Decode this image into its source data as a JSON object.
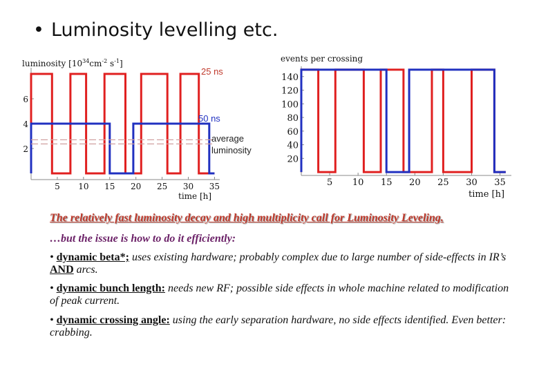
{
  "slide": {
    "bullet": "•",
    "title": "Luminosity levelling etc."
  },
  "chart_data": [
    {
      "type": "line",
      "ylabel": "luminosity [10^34 cm^-2 s^-1]",
      "ylabel_parts": {
        "main": "luminosity [10",
        "exp1": "34",
        "unit": "cm",
        "exp2": "-2",
        "unit2": " s",
        "exp3": "-1",
        "close": "]"
      },
      "xlabel": "time [h]",
      "xticks": [
        5,
        10,
        15,
        20,
        25,
        30,
        35
      ],
      "yticks": [
        2,
        4,
        6
      ],
      "xlim": [
        0,
        36
      ],
      "ylim": [
        -0.5,
        8.5
      ],
      "series": [
        {
          "name": "25 ns",
          "color": "#e02020",
          "x": [
            0,
            0,
            4,
            4,
            7.5,
            7.5,
            10.5,
            10.5,
            14,
            14,
            18,
            18,
            21,
            21,
            26,
            26,
            28.5,
            28.5,
            32,
            32,
            35
          ],
          "y": [
            0,
            8,
            8,
            0,
            0,
            8,
            8,
            0,
            0,
            8,
            8,
            0,
            0,
            8,
            8,
            0,
            0,
            8,
            8,
            0,
            0
          ]
        },
        {
          "name": "50 ns",
          "color": "#2030c0",
          "x": [
            0,
            0,
            15,
            15,
            19.5,
            19.5,
            34,
            34,
            35
          ],
          "y": [
            0,
            4,
            4,
            0,
            0,
            4,
            4,
            0,
            0
          ]
        },
        {
          "name": "average luminosity",
          "color": "#d0a0a0",
          "style": "dashed",
          "x": [
            0,
            35
          ],
          "y": [
            2.7,
            2.7
          ]
        }
      ]
    },
    {
      "type": "line",
      "ylabel": "events per crossing",
      "xlabel": "time [h]",
      "xticks": [
        5,
        10,
        15,
        20,
        25,
        30,
        35
      ],
      "yticks": [
        20,
        40,
        60,
        80,
        100,
        120,
        140
      ],
      "xlim": [
        0,
        37
      ],
      "ylim": [
        -5,
        155
      ],
      "series": [
        {
          "name": "25 ns",
          "color": "#e02020",
          "x": [
            0,
            0,
            3,
            3,
            6,
            6,
            11,
            11,
            14,
            14,
            18,
            18,
            23,
            23,
            25,
            25,
            30,
            30,
            34,
            34,
            36
          ],
          "y": [
            0,
            150,
            150,
            0,
            0,
            150,
            150,
            0,
            0,
            150,
            150,
            0,
            0,
            150,
            150,
            0,
            0,
            150,
            150,
            0,
            0
          ]
        },
        {
          "name": "50 ns",
          "color": "#2030c0",
          "x": [
            0,
            0,
            15,
            15,
            19,
            19,
            34,
            34,
            36
          ],
          "y": [
            0,
            150,
            150,
            0,
            0,
            150,
            150,
            0,
            0
          ]
        }
      ]
    }
  ],
  "labels": {
    "ns25": "25 ns",
    "ns50": "50 ns",
    "avg": "average luminosity"
  },
  "notes": {
    "headline": "The relatively fast luminosity decay and high multiplicity call for Luminosity Leveling.",
    "subline": "…but the issue is how to do it efficiently:",
    "items": [
      {
        "bullet": "• ",
        "key": "dynamic beta*;",
        "text": " uses existing hardware; probably complex due to large number of side-effects in IR’s ",
        "emph": "AND",
        "tail": " arcs."
      },
      {
        "bullet": "• ",
        "key": " dynamic bunch length:",
        "text": " needs new RF; possible side effects in whole machine related to modification of peak current.",
        "emph": "",
        "tail": ""
      },
      {
        "bullet": "• ",
        "key": "dynamic crossing angle:",
        "text": " using the early separation hardware, no side effects identified. Even better: crabbing.",
        "emph": "",
        "tail": ""
      }
    ]
  }
}
